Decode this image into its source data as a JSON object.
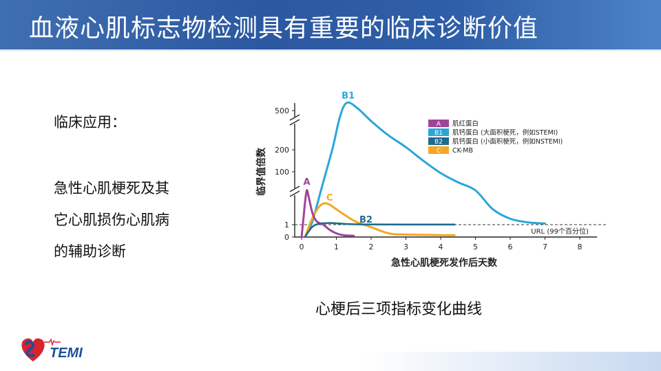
{
  "slide": {
    "title": "血液心肌标志物检测具有重要的临床诊断价值",
    "app_label": "临床应用：",
    "app_lines": [
      "急性心肌梗死及其",
      "它心肌损伤心肌病",
      "的辅助诊断"
    ],
    "caption": "心梗后三项指标变化曲线",
    "logo_text": "TEMI"
  },
  "colors": {
    "header": "#2b58a0",
    "myoglobin": "#a0449b",
    "troponin_large": "#29a6d8",
    "troponin_small": "#1f6b8f",
    "ckmb": "#f5a623"
  },
  "chart_data": {
    "type": "line",
    "xlabel": "急性心肌梗死发作后天数",
    "ylabel": "临界值倍数",
    "x_ticks": [
      0,
      1,
      2,
      3,
      4,
      5,
      6,
      7,
      8
    ],
    "xlim": [
      0,
      8.5
    ],
    "y_ticks": [
      0,
      1,
      100,
      200,
      500
    ],
    "y_scale": "broken",
    "reference_line": {
      "label": "URL (99个百分位)",
      "value": 1
    },
    "legend": [
      {
        "code": "A",
        "label": "肌红蛋白"
      },
      {
        "code": "B1",
        "label": "肌钙蛋白 (大面积梗死，例如STEMI)"
      },
      {
        "code": "B2",
        "label": "肌钙蛋白 (小面积梗死，例如NSTEMI)"
      },
      {
        "code": "C",
        "label": "CK-MB"
      }
    ],
    "curve_labels": [
      "A",
      "B1",
      "B2",
      "C"
    ],
    "series": [
      {
        "name": "A",
        "x": [
          0,
          0.05,
          0.1,
          0.15,
          0.2,
          0.3,
          0.4,
          0.5,
          0.6,
          0.8,
          1.0,
          1.2,
          1.5
        ],
        "y": [
          0,
          5,
          20,
          30,
          25,
          12,
          5,
          2.5,
          1.5,
          0.6,
          0.3,
          0.15,
          0.1
        ]
      },
      {
        "name": "B1",
        "x": [
          0.1,
          0.3,
          0.6,
          0.9,
          1.1,
          1.3,
          1.6,
          2.0,
          2.5,
          3.0,
          3.5,
          4.0,
          4.5,
          5.0,
          5.5,
          6.0,
          6.5,
          7.0
        ],
        "y": [
          0,
          3,
          50,
          220,
          450,
          560,
          520,
          420,
          310,
          220,
          150,
          95,
          60,
          30,
          14,
          6,
          3,
          2
        ]
      },
      {
        "name": "B2",
        "x": [
          0.1,
          0.3,
          0.5,
          0.8,
          1.0,
          1.3,
          1.6,
          2.0,
          3.0,
          4.4
        ],
        "y": [
          0,
          0.8,
          1.7,
          2.4,
          2.1,
          1.6,
          1.3,
          1.15,
          1.1,
          1.1
        ]
      },
      {
        "name": "C",
        "x": [
          0.1,
          0.3,
          0.5,
          0.65,
          0.8,
          1.0,
          1.3,
          1.6,
          2.0,
          2.5,
          3.0,
          4.4
        ],
        "y": [
          0,
          6,
          16,
          19,
          18,
          14,
          8,
          3,
          0.8,
          0.3,
          0.2,
          0.15
        ]
      }
    ]
  }
}
